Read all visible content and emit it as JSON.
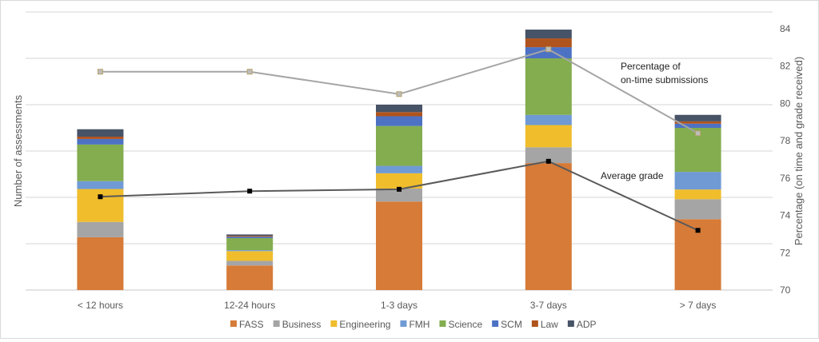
{
  "chart_data": {
    "type": "bar",
    "stacked": true,
    "categories": [
      "< 12 hours",
      "12-24 hours",
      "1-3 days",
      "3-7 days",
      "> 7 days"
    ],
    "ylabel": "Number of assessments",
    "y2label": "Percentage (on time and grade received)",
    "y2lim": [
      70,
      84
    ],
    "y2ticks": [
      "70",
      "72",
      "74",
      "76",
      "78",
      "80",
      "82",
      "84"
    ],
    "grid": true,
    "legend_position": "bottom",
    "series": [
      {
        "name": "FASS",
        "color": "#d67b38",
        "values": [
          1.14,
          0.53,
          1.91,
          2.74,
          1.53
        ]
      },
      {
        "name": "Business",
        "color": "#a5a5a5",
        "values": [
          0.33,
          0.1,
          0.28,
          0.34,
          0.43
        ]
      },
      {
        "name": "Engineering",
        "color": "#f0bd2c",
        "values": [
          0.71,
          0.21,
          0.33,
          0.48,
          0.21
        ]
      },
      {
        "name": "FMH",
        "color": "#6f9ad4",
        "values": [
          0.17,
          0.02,
          0.16,
          0.22,
          0.38
        ]
      },
      {
        "name": "Science",
        "color": "#83ad4f",
        "values": [
          0.79,
          0.26,
          0.86,
          1.22,
          0.95
        ]
      },
      {
        "name": "SCM",
        "color": "#4d72c4",
        "values": [
          0.12,
          0.03,
          0.21,
          0.24,
          0.09
        ]
      },
      {
        "name": "Law",
        "color": "#b0541d",
        "values": [
          0.05,
          0.02,
          0.09,
          0.19,
          0.05
        ]
      },
      {
        "name": "ADP",
        "color": "#475366",
        "values": [
          0.16,
          0.03,
          0.16,
          0.19,
          0.14
        ]
      }
    ],
    "lines": [
      {
        "label": "Percentage of on-time submissions",
        "label_lines": [
          "Percentage of",
          "on-time submissions"
        ],
        "axis": "right",
        "color": "#a5a5a5",
        "marker_color": "#b7a16a",
        "values": [
          81.7,
          81.7,
          80.5,
          82.9,
          78.4
        ]
      },
      {
        "label": "Average grade",
        "label_lines": [
          "Average grade"
        ],
        "axis": "right",
        "color": "#5a5a5a",
        "marker_color": "#000000",
        "values": [
          75.0,
          75.3,
          75.4,
          76.9,
          73.2
        ]
      }
    ]
  }
}
